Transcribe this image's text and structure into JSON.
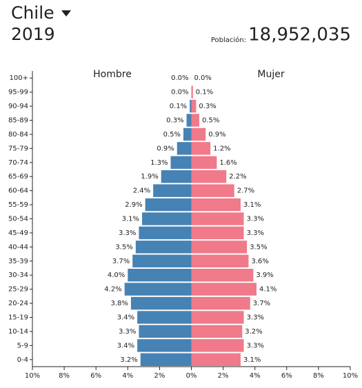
{
  "header": {
    "country": "Chile",
    "year": "2019",
    "population_label": "Población:",
    "population": "18,952,035"
  },
  "chart_data": {
    "type": "pyramid",
    "categories": [
      "100+",
      "95-99",
      "90-94",
      "85-89",
      "80-84",
      "75-79",
      "70-74",
      "65-69",
      "60-64",
      "55-59",
      "50-54",
      "45-49",
      "40-44",
      "35-39",
      "30-34",
      "25-29",
      "20-24",
      "15-19",
      "10-14",
      "5-9",
      "0-4"
    ],
    "series": [
      {
        "name": "Hombre",
        "color": "#4682b4",
        "side": "left",
        "values": [
          0.0,
          0.0,
          0.1,
          0.3,
          0.5,
          0.9,
          1.3,
          1.9,
          2.4,
          2.9,
          3.1,
          3.3,
          3.5,
          3.7,
          4.0,
          4.2,
          3.8,
          3.4,
          3.3,
          3.4,
          3.2
        ],
        "value_labels": [
          "0.0%",
          "0.0%",
          "0.1%",
          "0.3%",
          "0.5%",
          "0.9%",
          "1.3%",
          "1.9%",
          "2.4%",
          "2.9%",
          "3.1%",
          "3.3%",
          "3.5%",
          "3.7%",
          "4.0%",
          "4.2%",
          "3.8%",
          "3.4%",
          "3.3%",
          "3.4%",
          "3.2%"
        ]
      },
      {
        "name": "Mujer",
        "color": "#f07a8a",
        "side": "right",
        "values": [
          0.0,
          0.1,
          0.3,
          0.5,
          0.9,
          1.2,
          1.6,
          2.2,
          2.7,
          3.1,
          3.3,
          3.3,
          3.5,
          3.6,
          3.9,
          4.1,
          3.7,
          3.3,
          3.2,
          3.3,
          3.1
        ],
        "value_labels": [
          "0.0%",
          "0.1%",
          "0.3%",
          "0.5%",
          "0.9%",
          "1.2%",
          "1.6%",
          "2.2%",
          "2.7%",
          "3.1%",
          "3.3%",
          "3.3%",
          "3.5%",
          "3.6%",
          "3.9%",
          "4.1%",
          "3.7%",
          "3.3%",
          "3.2%",
          "3.3%",
          "3.1%"
        ]
      }
    ],
    "xlim": [
      -10,
      10
    ],
    "xticks": [
      {
        "value": -10,
        "label": "10%"
      },
      {
        "value": -8,
        "label": "8%"
      },
      {
        "value": -6,
        "label": "6%"
      },
      {
        "value": -4,
        "label": "4%"
      },
      {
        "value": -2,
        "label": "2%"
      },
      {
        "value": 0,
        "label": "0%"
      },
      {
        "value": 2,
        "label": "2%"
      },
      {
        "value": 4,
        "label": "4%"
      },
      {
        "value": 6,
        "label": "6%"
      },
      {
        "value": 8,
        "label": "8%"
      },
      {
        "value": 10,
        "label": "10%"
      }
    ]
  }
}
